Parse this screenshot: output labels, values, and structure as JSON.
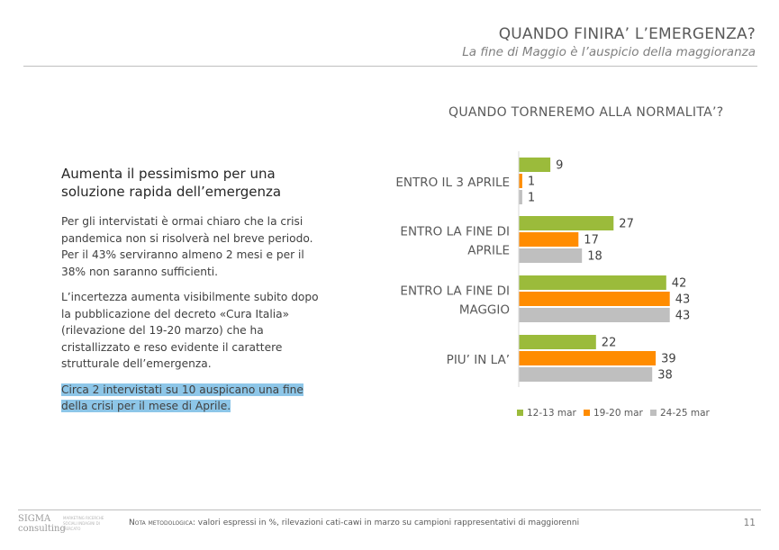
{
  "header": {
    "title": "QUANDO FINIRA’ L’EMERGENZA?",
    "subtitle": "La fine di Maggio è l’auspicio della maggioranza"
  },
  "text": {
    "heading": "Aumenta il pessimismo per una soluzione rapida dell’emergenza",
    "para1": "Per gli intervistati è ormai chiaro che la crisi pandemica non si risolverà nel breve periodo. Per il 43% serviranno almeno 2 mesi e per il 38% non saranno sufficienti.",
    "para2": "L’incertezza aumenta visibilmente subito dopo la pubblicazione del decreto «Cura Italia» (rilevazione del 19-20 marzo) che ha cristallizzato e reso evidente il carattere strutturale dell’emergenza.",
    "highlight": "Circa 2 intervistati su 10 auspicano una fine della crisi per il mese di Aprile."
  },
  "chart_data": {
    "type": "bar",
    "orientation": "horizontal",
    "title": "QUANDO TORNEREMO ALLA NORMALITA’?",
    "categories": [
      [
        "ENTRO IL 3 APRILE"
      ],
      [
        "ENTRO LA FINE DI",
        "APRILE"
      ],
      [
        "ENTRO LA FINE DI",
        "MAGGIO"
      ],
      [
        "PIU’ IN LA’"
      ]
    ],
    "series": [
      {
        "name": "12-13 mar",
        "color": "#9bbb3b",
        "values": [
          9,
          27,
          42,
          22
        ]
      },
      {
        "name": "19-20 mar",
        "color": "#ff8c00",
        "values": [
          1,
          17,
          43,
          39
        ]
      },
      {
        "name": "24-25 mar",
        "color": "#bfbfbf",
        "values": [
          1,
          18,
          43,
          38
        ]
      }
    ],
    "xlim": [
      0,
      50
    ],
    "grid": false,
    "legend": "bottom",
    "data_labels": true
  },
  "footer": {
    "logo_main": "SIGMA",
    "logo_sub": "consulting",
    "logo_tag": "MARKETING RICERCHE SOCIALI INDAGINI DI MERCATO",
    "note_label": "Nota metodologica:",
    "note_text": " valori espressi in %, rilevazioni cati-cawi in marzo su campioni rappresentativi di maggiorenni",
    "page": "11"
  }
}
